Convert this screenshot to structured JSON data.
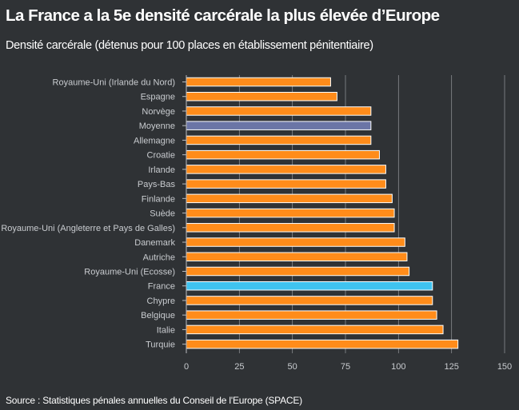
{
  "title": "La France a la 5e densité carcérale la plus élevée d’Europe",
  "subtitle": "Densité carcérale (détenus pour 100 places en établissement pénitentiaire)",
  "source": "Source : Statistiques pénales annuelles du Conseil de l'Europe (SPACE)",
  "colors": {
    "background": "#2f3235",
    "bar_default": "#ff8c1a",
    "bar_average": "#6b75a6",
    "bar_france": "#3fc3f0",
    "grid": "#8a8d91",
    "axis": "#b8bbbf"
  },
  "chart_data": {
    "type": "bar",
    "orientation": "horizontal",
    "categories": [
      "Royaume-Uni (Irlande du Nord)",
      "Espagne",
      "Norvège",
      "Moyenne",
      "Allemagne",
      "Croatie",
      "Irlande",
      "Pays-Bas",
      "Finlande",
      "Suède",
      "Royaume-Uni (Angleterre et Pays de Galles)",
      "Danemark",
      "Autriche",
      "Royaume-Uni (Ecosse)",
      "France",
      "Chypre",
      "Belgique",
      "Italie",
      "Turquie"
    ],
    "values": [
      68,
      71,
      87,
      87,
      87,
      91,
      94,
      94,
      97,
      98,
      98,
      103,
      104,
      105,
      116,
      116,
      118,
      121,
      128
    ],
    "highlight": {
      "Moyenne": "bar_average",
      "France": "bar_france"
    },
    "xlim": [
      0,
      150
    ],
    "xticks": [
      0,
      25,
      50,
      75,
      100,
      125,
      150
    ],
    "grid": true,
    "xlabel": "",
    "ylabel": ""
  }
}
